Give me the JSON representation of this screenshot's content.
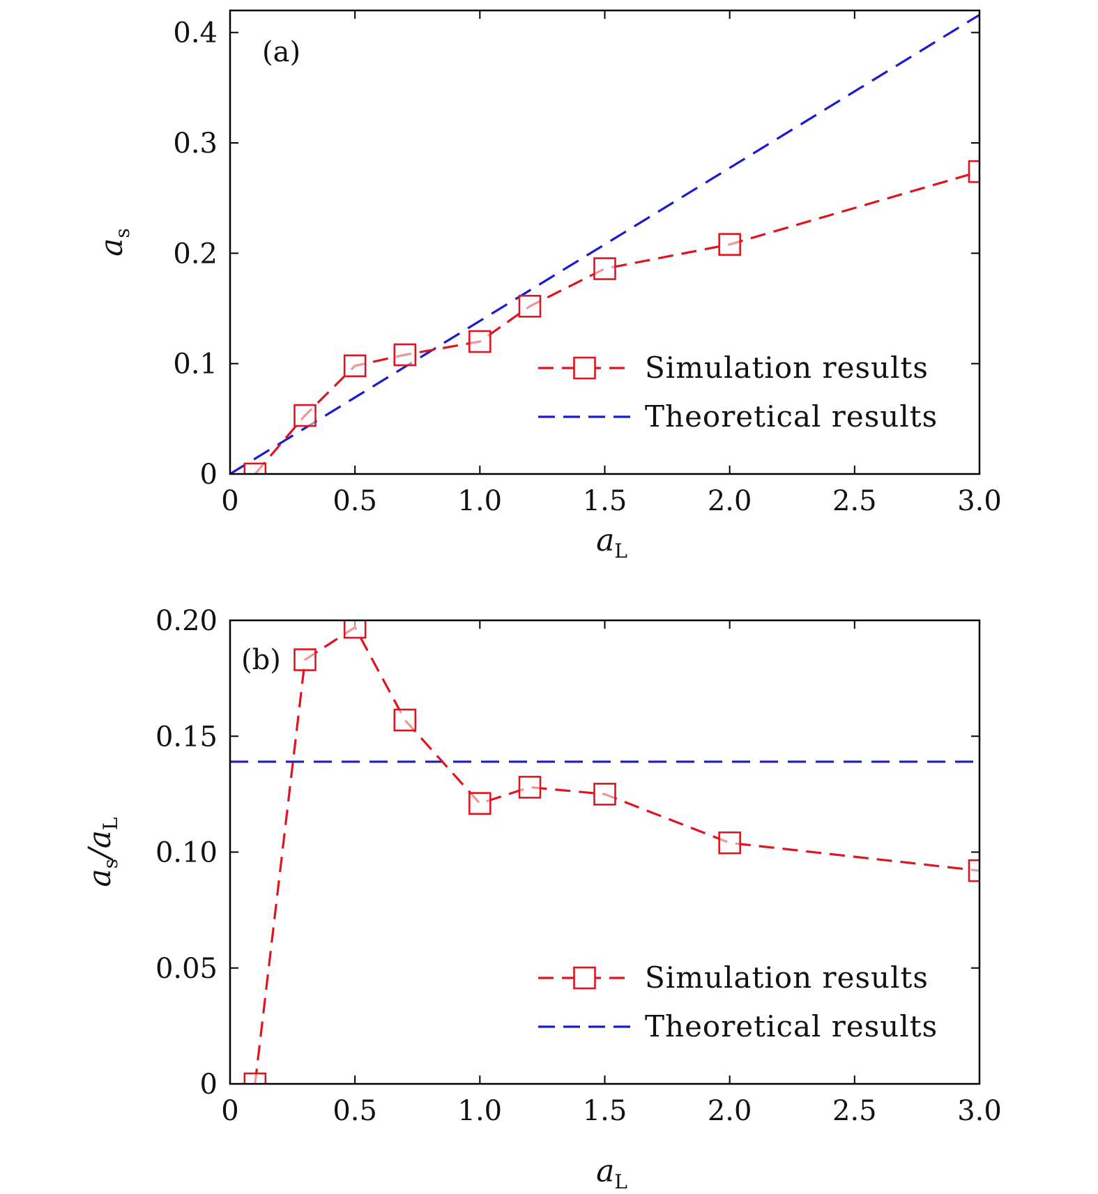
{
  "colors": {
    "simulation": "#e0141e",
    "theoretical": "#1a1ad2"
  },
  "chart_data": [
    {
      "type": "line",
      "panel_label": "(a)",
      "xlabel": "a",
      "xlabel_sub": "L",
      "ylabel": "a",
      "ylabel_sub": "s",
      "ylabel_tail": "",
      "ylabel_tail_sub": "",
      "xlim": [
        0,
        3.0
      ],
      "ylim": [
        0,
        0.42
      ],
      "xticks": [
        0,
        0.5,
        1.0,
        1.5,
        2.0,
        2.5,
        3.0
      ],
      "xtick_labels": [
        "0",
        "0.5",
        "1.0",
        "1.5",
        "2.0",
        "2.5",
        "3.0"
      ],
      "yticks": [
        0,
        0.1,
        0.2,
        0.3,
        0.4
      ],
      "ytick_labels": [
        "0",
        "0.1",
        "0.2",
        "0.3",
        "0.4"
      ],
      "legend_position": "bottom-right",
      "series": [
        {
          "name": "Simulation results",
          "style": "dashed-square-markers",
          "color_key": "simulation",
          "x": [
            0.1,
            0.3,
            0.5,
            0.7,
            1.0,
            1.2,
            1.5,
            2.0,
            3.0
          ],
          "y": [
            0.0,
            0.053,
            0.098,
            0.108,
            0.12,
            0.152,
            0.186,
            0.208,
            0.274
          ]
        },
        {
          "name": "Theoretical results",
          "style": "dashed",
          "color_key": "theoretical",
          "x": [
            0,
            3.0
          ],
          "y": [
            0,
            0.416
          ]
        }
      ]
    },
    {
      "type": "line",
      "panel_label": "(b)",
      "xlabel": "a",
      "xlabel_sub": "L",
      "ylabel": "a",
      "ylabel_sub": "s",
      "ylabel_tail": "/a",
      "ylabel_tail_sub": "L",
      "xlim": [
        0,
        3.0
      ],
      "ylim": [
        0,
        0.2
      ],
      "xticks": [
        0,
        0.5,
        1.0,
        1.5,
        2.0,
        2.5,
        3.0
      ],
      "xtick_labels": [
        "0",
        "0.5",
        "1.0",
        "1.5",
        "2.0",
        "2.5",
        "3.0"
      ],
      "yticks": [
        0,
        0.05,
        0.1,
        0.15,
        0.2
      ],
      "ytick_labels": [
        "0",
        "0.05",
        "0.10",
        "0.15",
        "0.20"
      ],
      "legend_position": "bottom-right",
      "series": [
        {
          "name": "Simulation results",
          "style": "dashed-square-markers",
          "color_key": "simulation",
          "x": [
            0.1,
            0.3,
            0.5,
            0.7,
            1.0,
            1.2,
            1.5,
            2.0,
            3.0
          ],
          "y": [
            0.0,
            0.183,
            0.197,
            0.157,
            0.121,
            0.128,
            0.125,
            0.104,
            0.092
          ]
        },
        {
          "name": "Theoretical results",
          "style": "dashed",
          "color_key": "theoretical",
          "x": [
            0,
            3.0
          ],
          "y": [
            0.139,
            0.139
          ]
        }
      ]
    }
  ]
}
